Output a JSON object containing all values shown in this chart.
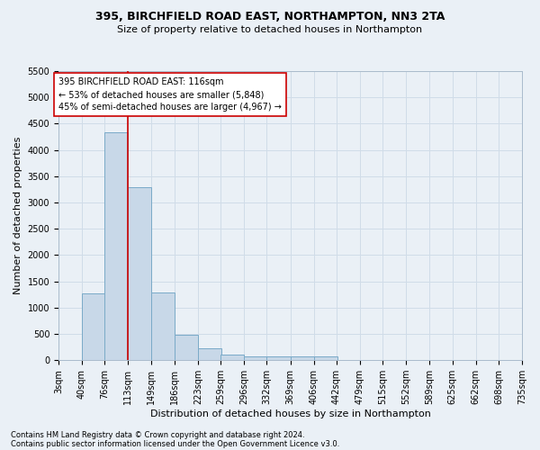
{
  "title1": "395, BIRCHFIELD ROAD EAST, NORTHAMPTON, NN3 2TA",
  "title2": "Size of property relative to detached houses in Northampton",
  "xlabel": "Distribution of detached houses by size in Northampton",
  "ylabel": "Number of detached properties",
  "bar_color": "#c8d8e8",
  "bar_edge_color": "#7aaac8",
  "grid_color": "#d0dce8",
  "background_color": "#eaf0f6",
  "annotation_text": "395 BIRCHFIELD ROAD EAST: 116sqm\n← 53% of detached houses are smaller (5,848)\n45% of semi-detached houses are larger (4,967) →",
  "vline_x": 113,
  "vline_color": "#cc0000",
  "categories": [
    "3sqm",
    "40sqm",
    "76sqm",
    "113sqm",
    "149sqm",
    "186sqm",
    "223sqm",
    "259sqm",
    "296sqm",
    "332sqm",
    "369sqm",
    "406sqm",
    "442sqm",
    "479sqm",
    "515sqm",
    "552sqm",
    "589sqm",
    "625sqm",
    "662sqm",
    "698sqm",
    "735sqm"
  ],
  "bin_edges": [
    3,
    40,
    76,
    113,
    149,
    186,
    223,
    259,
    296,
    332,
    369,
    406,
    442,
    479,
    515,
    552,
    589,
    625,
    662,
    698,
    735
  ],
  "bin_width": 37,
  "values": [
    0,
    1270,
    4330,
    3290,
    1290,
    480,
    230,
    100,
    65,
    65,
    65,
    65,
    0,
    0,
    0,
    0,
    0,
    0,
    0,
    0,
    0
  ],
  "ylim": [
    0,
    5500
  ],
  "yticks": [
    0,
    500,
    1000,
    1500,
    2000,
    2500,
    3000,
    3500,
    4000,
    4500,
    5000,
    5500
  ],
  "footnote1": "Contains HM Land Registry data © Crown copyright and database right 2024.",
  "footnote2": "Contains public sector information licensed under the Open Government Licence v3.0.",
  "title1_fontsize": 9,
  "title2_fontsize": 8,
  "xlabel_fontsize": 8,
  "ylabel_fontsize": 8,
  "tick_fontsize": 7,
  "annot_fontsize": 7,
  "footnote_fontsize": 6
}
